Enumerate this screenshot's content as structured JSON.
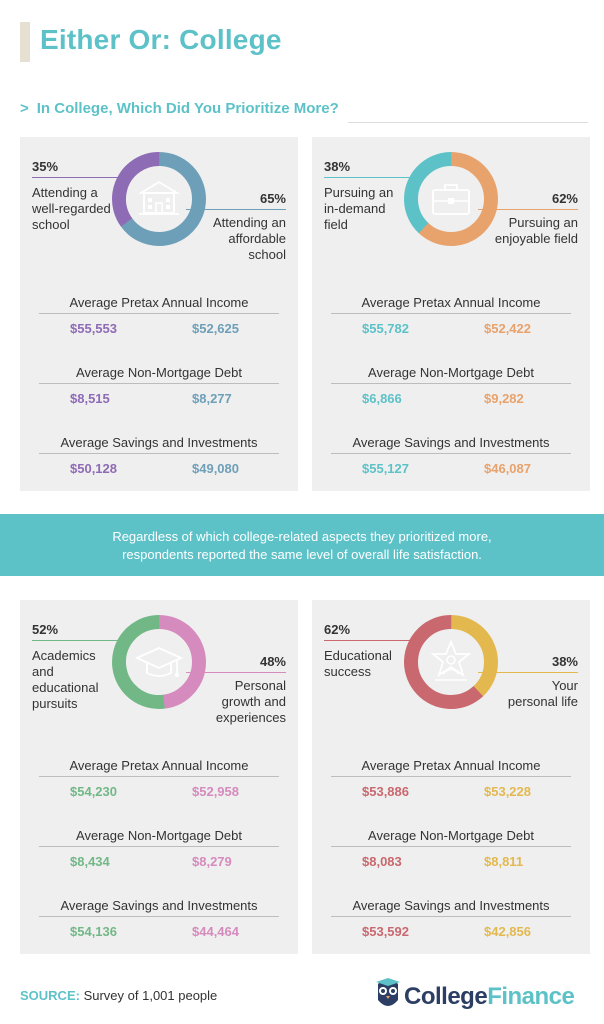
{
  "title": "Either Or: College",
  "question": "In College, Which Did You Prioritize More?",
  "banner": {
    "line1": "Regardless of which college-related aspects they prioritized more,",
    "line2": "respondents reported the same level of overall life satisfaction."
  },
  "source": {
    "label": "SOURCE:",
    "text": "Survey of 1,001 people"
  },
  "logo": {
    "part1": "College",
    "part2": "Finance"
  },
  "metric_titles": {
    "income": "Average Pretax Annual Income",
    "debt": "Average Non-Mortgage Debt",
    "savings": "Average Savings and Investments"
  },
  "cards": [
    {
      "left": {
        "pct": "35%",
        "label_lines": [
          "Attending a",
          "well-regarded",
          "school"
        ],
        "color": "#8e6bb5",
        "share": 35
      },
      "right": {
        "pct": "65%",
        "label_lines": [
          "Attending an",
          "affordable",
          "school"
        ],
        "color": "#6e9fb8",
        "share": 65
      },
      "icon": "school-building-icon",
      "income": [
        "$55,553",
        "$52,625"
      ],
      "debt": [
        "$8,515",
        "$8,277"
      ],
      "savings": [
        "$50,128",
        "$49,080"
      ]
    },
    {
      "left": {
        "pct": "38%",
        "label_lines": [
          "Pursuing an",
          "in-demand",
          "field"
        ],
        "color": "#5dc2c8",
        "share": 38
      },
      "right": {
        "pct": "62%",
        "label_lines": [
          "Pursuing an",
          "enjoyable field"
        ],
        "color": "#e8a26c",
        "share": 62
      },
      "icon": "briefcase-icon",
      "income": [
        "$55,782",
        "$52,422"
      ],
      "debt": [
        "$6,866",
        "$9,282"
      ],
      "savings": [
        "$55,127",
        "$46,087"
      ]
    },
    {
      "left": {
        "pct": "52%",
        "label_lines": [
          "Academics",
          "and",
          "educational",
          "pursuits"
        ],
        "color": "#72b887",
        "share": 52
      },
      "right": {
        "pct": "48%",
        "label_lines": [
          "Personal",
          "growth and",
          "experiences"
        ],
        "color": "#d58bbd",
        "share": 48
      },
      "icon": "graduation-cap-icon",
      "income": [
        "$54,230",
        "$52,958"
      ],
      "debt": [
        "$8,434",
        "$8,279"
      ],
      "savings": [
        "$54,136",
        "$44,464"
      ]
    },
    {
      "left": {
        "pct": "62%",
        "label_lines": [
          "Educational",
          "success"
        ],
        "color": "#c9686e",
        "share": 62
      },
      "right": {
        "pct": "38%",
        "label_lines": [
          "Your",
          "personal life"
        ],
        "color": "#e3b94f",
        "share": 38
      },
      "icon": "star-person-icon",
      "income": [
        "$53,886",
        "$53,228"
      ],
      "debt": [
        "$8,083",
        "$8,811"
      ],
      "savings": [
        "$53,592",
        "$42,856"
      ]
    }
  ]
}
